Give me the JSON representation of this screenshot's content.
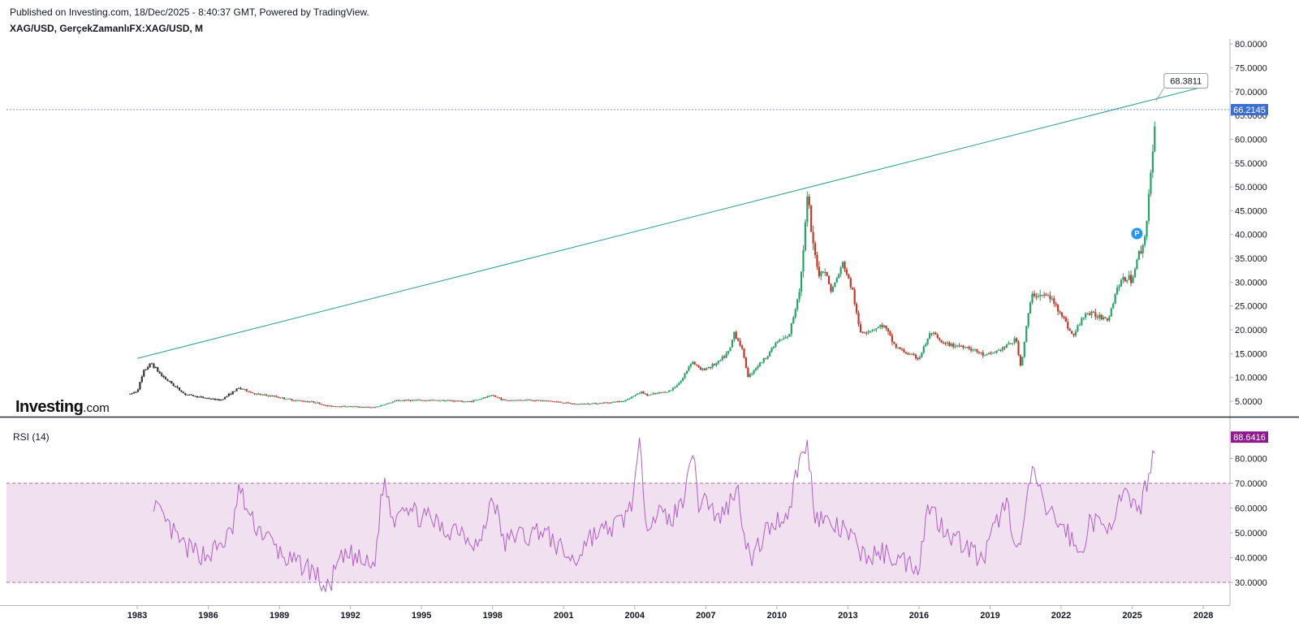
{
  "header": {
    "published": "Published on Investing.com, 18/Dec/2025 - 8:40:37 GMT, Powered by TradingView.",
    "symbol": "XAG/USD, GerçekZamanlıFX:XAG/USD, M"
  },
  "logo": {
    "main": "Investing",
    "suffix": ".com"
  },
  "colors": {
    "up": "#26a269",
    "down": "#c0392b",
    "trendline": "#2a9d8f",
    "rsi_line": "#b05fc7",
    "rsi_band": "#f0e0f0",
    "price_badge": "#3d6fd1",
    "rsi_badge": "#8e1a8e"
  },
  "chart_data": [
    {
      "type": "candlestick",
      "title": "XAG/USD, GerçekZamanlıFX:XAG/USD, M",
      "interval": "M",
      "x_ticks": [
        "1983",
        "1986",
        "1989",
        "1992",
        "1995",
        "1998",
        "2001",
        "2004",
        "2007",
        "2010",
        "2013",
        "2016",
        "2019",
        "2022",
        "2025",
        "2028"
      ],
      "y_ticks": [
        "5.0000",
        "10.0000",
        "15.0000",
        "20.0000",
        "25.0000",
        "30.0000",
        "35.0000",
        "40.0000",
        "45.0000",
        "50.0000",
        "55.0000",
        "60.0000",
        "65.0000",
        "70.0000",
        "75.0000",
        "80.0000"
      ],
      "ylim": [
        2,
        81
      ],
      "last_price": "66.2145",
      "last_price_value": 66.2145,
      "trendline": {
        "start": [
          1983.0,
          14.0
        ],
        "end": [
          2028.0,
          71.0
        ]
      },
      "trendline_label": "68.3811",
      "marker_label": "P",
      "marker_point": [
        2025.2,
        40.2
      ],
      "series_anchors": [
        [
          1982.7,
          6.5
        ],
        [
          1983.0,
          7.2
        ],
        [
          1983.3,
          11.5
        ],
        [
          1983.6,
          13.0
        ],
        [
          1984.0,
          10.5
        ],
        [
          1984.5,
          8.5
        ],
        [
          1985.0,
          6.5
        ],
        [
          1985.5,
          6.0
        ],
        [
          1986.0,
          5.6
        ],
        [
          1986.5,
          5.2
        ],
        [
          1987.3,
          7.8
        ],
        [
          1988.0,
          6.5
        ],
        [
          1988.8,
          6.0
        ],
        [
          1989.5,
          5.3
        ],
        [
          1990.5,
          4.8
        ],
        [
          1991.0,
          4.0
        ],
        [
          1992.0,
          3.9
        ],
        [
          1993.0,
          3.7
        ],
        [
          1994.0,
          5.2
        ],
        [
          1995.0,
          5.2
        ],
        [
          1996.0,
          5.2
        ],
        [
          1997.0,
          4.9
        ],
        [
          1998.0,
          6.2
        ],
        [
          1998.5,
          5.2
        ],
        [
          1999.5,
          5.3
        ],
        [
          2000.5,
          5.0
        ],
        [
          2001.5,
          4.4
        ],
        [
          2002.5,
          4.6
        ],
        [
          2003.5,
          5.0
        ],
        [
          2004.3,
          7.0
        ],
        [
          2004.5,
          6.2
        ],
        [
          2005.5,
          7.2
        ],
        [
          2006.0,
          9.5
        ],
        [
          2006.4,
          13.5
        ],
        [
          2006.8,
          11.5
        ],
        [
          2007.5,
          13.0
        ],
        [
          2008.0,
          15.5
        ],
        [
          2008.2,
          19.5
        ],
        [
          2008.5,
          16.5
        ],
        [
          2008.8,
          10.0
        ],
        [
          2009.0,
          11.5
        ],
        [
          2009.5,
          14.0
        ],
        [
          2010.0,
          17.5
        ],
        [
          2010.5,
          18.5
        ],
        [
          2010.8,
          25.0
        ],
        [
          2011.0,
          30.0
        ],
        [
          2011.3,
          48.5
        ],
        [
          2011.5,
          38.0
        ],
        [
          2011.8,
          31.5
        ],
        [
          2012.0,
          33.0
        ],
        [
          2012.3,
          28.0
        ],
        [
          2012.8,
          34.0
        ],
        [
          2013.2,
          28.0
        ],
        [
          2013.5,
          19.5
        ],
        [
          2014.0,
          20.0
        ],
        [
          2014.5,
          21.0
        ],
        [
          2015.0,
          16.5
        ],
        [
          2015.5,
          15.0
        ],
        [
          2016.0,
          14.0
        ],
        [
          2016.5,
          19.5
        ],
        [
          2017.0,
          17.0
        ],
        [
          2018.0,
          16.5
        ],
        [
          2018.8,
          14.5
        ],
        [
          2019.5,
          16.0
        ],
        [
          2020.1,
          18.0
        ],
        [
          2020.3,
          12.0
        ],
        [
          2020.6,
          23.0
        ],
        [
          2020.8,
          27.5
        ],
        [
          2021.5,
          27.0
        ],
        [
          2022.0,
          23.5
        ],
        [
          2022.5,
          18.5
        ],
        [
          2023.0,
          23.5
        ],
        [
          2023.5,
          23.0
        ],
        [
          2024.0,
          22.5
        ],
        [
          2024.4,
          29.5
        ],
        [
          2024.8,
          31.0
        ],
        [
          2025.0,
          30.5
        ],
        [
          2025.2,
          35.0
        ],
        [
          2025.5,
          38.0
        ],
        [
          2025.7,
          48.5
        ],
        [
          2025.9,
          58.0
        ],
        [
          2026.0,
          66.2
        ]
      ]
    },
    {
      "type": "line",
      "title": "RSI (14)",
      "x_ticks": [
        "1983",
        "1986",
        "1989",
        "1992",
        "1995",
        "1998",
        "2001",
        "2004",
        "2007",
        "2010",
        "2013",
        "2016",
        "2019",
        "2022",
        "2025",
        "2028"
      ],
      "y_ticks": [
        "30.0000",
        "40.0000",
        "50.0000",
        "60.0000",
        "70.0000",
        "80.0000"
      ],
      "ylim": [
        24,
        92
      ],
      "bands": [
        30,
        70
      ],
      "last_value": "88.6416",
      "last_value_number": 88.6416,
      "series_anchors": [
        [
          1983.7,
          63
        ],
        [
          1984.0,
          56
        ],
        [
          1984.5,
          50
        ],
        [
          1985.0,
          44
        ],
        [
          1985.5,
          42
        ],
        [
          1986.0,
          41
        ],
        [
          1986.5,
          45
        ],
        [
          1987.0,
          50
        ],
        [
          1987.3,
          68
        ],
        [
          1987.8,
          55
        ],
        [
          1988.5,
          48
        ],
        [
          1989.0,
          42
        ],
        [
          1989.5,
          38
        ],
        [
          1990.0,
          37
        ],
        [
          1990.5,
          34
        ],
        [
          1991.0,
          26
        ],
        [
          1991.5,
          38
        ],
        [
          1992.0,
          41
        ],
        [
          1992.5,
          38
        ],
        [
          1993.0,
          36
        ],
        [
          1993.4,
          72
        ],
        [
          1993.8,
          55
        ],
        [
          1994.2,
          63
        ],
        [
          1994.8,
          57
        ],
        [
          1995.5,
          55
        ],
        [
          1996.0,
          50
        ],
        [
          1996.5,
          53
        ],
        [
          1997.0,
          48
        ],
        [
          1997.5,
          45
        ],
        [
          1998.0,
          66
        ],
        [
          1998.5,
          45
        ],
        [
          1999.0,
          50
        ],
        [
          1999.5,
          48
        ],
        [
          2000.0,
          52
        ],
        [
          2000.5,
          47
        ],
        [
          2001.0,
          42
        ],
        [
          2001.5,
          38
        ],
        [
          2002.0,
          48
        ],
        [
          2002.5,
          50
        ],
        [
          2003.0,
          52
        ],
        [
          2003.5,
          55
        ],
        [
          2003.9,
          63
        ],
        [
          2004.2,
          84
        ],
        [
          2004.5,
          55
        ],
        [
          2005.0,
          58
        ],
        [
          2005.5,
          55
        ],
        [
          2006.0,
          62
        ],
        [
          2006.4,
          85
        ],
        [
          2006.7,
          62
        ],
        [
          2007.0,
          65
        ],
        [
          2007.5,
          55
        ],
        [
          2008.0,
          62
        ],
        [
          2008.3,
          70
        ],
        [
          2008.6,
          52
        ],
        [
          2008.9,
          38
        ],
        [
          2009.5,
          50
        ],
        [
          2010.0,
          55
        ],
        [
          2010.5,
          58
        ],
        [
          2010.9,
          78
        ],
        [
          2011.3,
          85
        ],
        [
          2011.6,
          58
        ],
        [
          2012.0,
          55
        ],
        [
          2012.5,
          52
        ],
        [
          2013.0,
          50
        ],
        [
          2013.4,
          44
        ],
        [
          2013.8,
          40
        ],
        [
          2014.5,
          42
        ],
        [
          2015.0,
          40
        ],
        [
          2015.5,
          38
        ],
        [
          2016.0,
          37
        ],
        [
          2016.4,
          62
        ],
        [
          2016.8,
          55
        ],
        [
          2017.5,
          48
        ],
        [
          2018.0,
          45
        ],
        [
          2018.7,
          38
        ],
        [
          2019.3,
          55
        ],
        [
          2019.7,
          62
        ],
        [
          2020.2,
          42
        ],
        [
          2020.5,
          58
        ],
        [
          2020.8,
          77
        ],
        [
          2021.2,
          62
        ],
        [
          2021.8,
          55
        ],
        [
          2022.3,
          50
        ],
        [
          2022.8,
          40
        ],
        [
          2023.2,
          55
        ],
        [
          2023.8,
          52
        ],
        [
          2024.3,
          58
        ],
        [
          2024.7,
          66
        ],
        [
          2025.0,
          59
        ],
        [
          2025.4,
          62
        ],
        [
          2025.8,
          78
        ],
        [
          2026.0,
          88.6
        ]
      ]
    }
  ]
}
